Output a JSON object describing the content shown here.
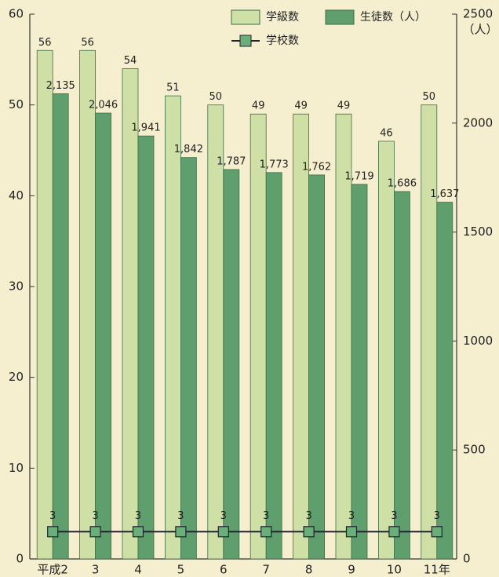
{
  "chart_data": {
    "type": "bar",
    "categories": [
      "平成2",
      "3",
      "4",
      "5",
      "6",
      "7",
      "8",
      "9",
      "10",
      "11年"
    ],
    "series": [
      {
        "name": "学級数",
        "color": "#cfe0a6",
        "values": [
          56,
          56,
          54,
          51,
          50,
          49,
          49,
          49,
          46,
          50
        ]
      },
      {
        "name": "生徒数（人）",
        "color": "#5f9f6e",
        "axis": "y2",
        "values": [
          2135,
          2046,
          1941,
          1842,
          1787,
          1773,
          1762,
          1719,
          1686,
          1637
        ],
        "value_labels": [
          "2,135",
          "2,046",
          "1,941",
          "1,842",
          "1,787",
          "1,773",
          "1,762",
          "1,719",
          "1,686",
          "1,637"
        ]
      },
      {
        "name": "学校数",
        "type": "line",
        "color": "#6aae7a",
        "values": [
          3,
          3,
          3,
          3,
          3,
          3,
          3,
          3,
          3,
          3
        ]
      }
    ],
    "ylim": [
      0,
      60
    ],
    "yticks": [
      0,
      10,
      20,
      30,
      40,
      50,
      60
    ],
    "y2lim": [
      0,
      2500
    ],
    "y2ticks": [
      0,
      500,
      1000,
      1500,
      2000,
      2500
    ],
    "y2label": "（人）"
  }
}
